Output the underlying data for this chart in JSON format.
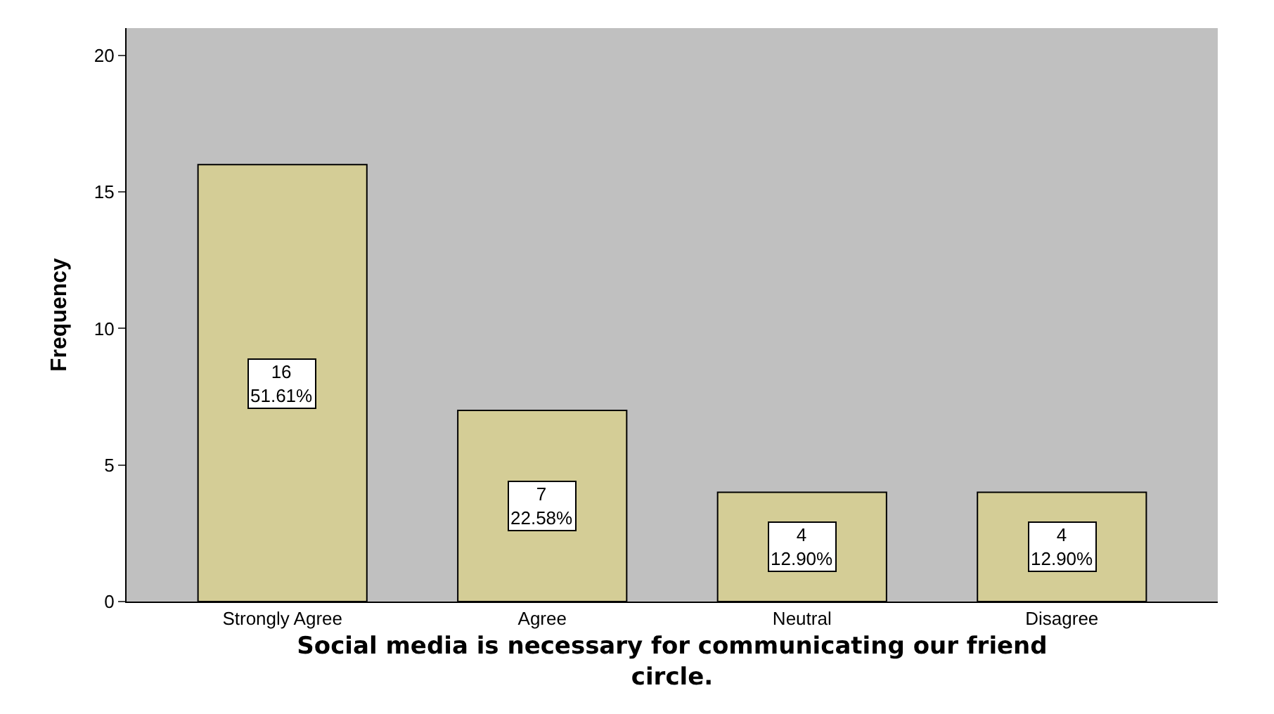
{
  "chart_data": {
    "type": "bar",
    "categories": [
      "Strongly Agree",
      "Agree",
      "Neutral",
      "Disagree"
    ],
    "values": [
      16,
      7,
      4,
      4
    ],
    "value_labels": [
      "16\n51.61%",
      "7\n22.58%",
      "4\n12.90%",
      "4\n12.90%"
    ],
    "color": "#d4cd96",
    "xlabel": "Social media is necessary for communicating our friend\ncircle.",
    "ylabel": "Frequency",
    "ylim": [
      0,
      21
    ],
    "yticks": [
      0,
      5,
      10,
      15,
      20
    ],
    "grid": false
  }
}
